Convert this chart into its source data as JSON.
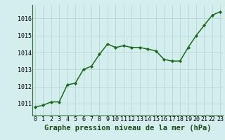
{
  "x": [
    0,
    1,
    2,
    3,
    4,
    5,
    6,
    7,
    8,
    9,
    10,
    11,
    12,
    13,
    14,
    15,
    16,
    17,
    18,
    19,
    20,
    21,
    22,
    23
  ],
  "y": [
    1010.8,
    1010.9,
    1011.1,
    1011.1,
    1012.1,
    1012.2,
    1013.0,
    1013.2,
    1013.9,
    1014.5,
    1014.3,
    1014.4,
    1014.3,
    1014.3,
    1014.2,
    1014.1,
    1013.6,
    1013.5,
    1013.5,
    1014.3,
    1015.0,
    1015.6,
    1016.2,
    1016.4
  ],
  "yticks": [
    1011,
    1012,
    1013,
    1014,
    1015,
    1016
  ],
  "xticks": [
    0,
    1,
    2,
    3,
    4,
    5,
    6,
    7,
    8,
    9,
    10,
    11,
    12,
    13,
    14,
    15,
    16,
    17,
    18,
    19,
    20,
    21,
    22,
    23
  ],
  "ylim": [
    1010.3,
    1016.8
  ],
  "xlim": [
    -0.3,
    23.3
  ],
  "line_color": "#1a6b1a",
  "marker_color": "#1a6b1a",
  "bg_color": "#d4eeee",
  "grid_color": "#b0d4d4",
  "xlabel": "Graphe pression niveau de la mer (hPa)",
  "xlabel_fontsize": 7.5,
  "tick_fontsize": 6.0,
  "line_width": 1.1,
  "marker_size": 2.2
}
